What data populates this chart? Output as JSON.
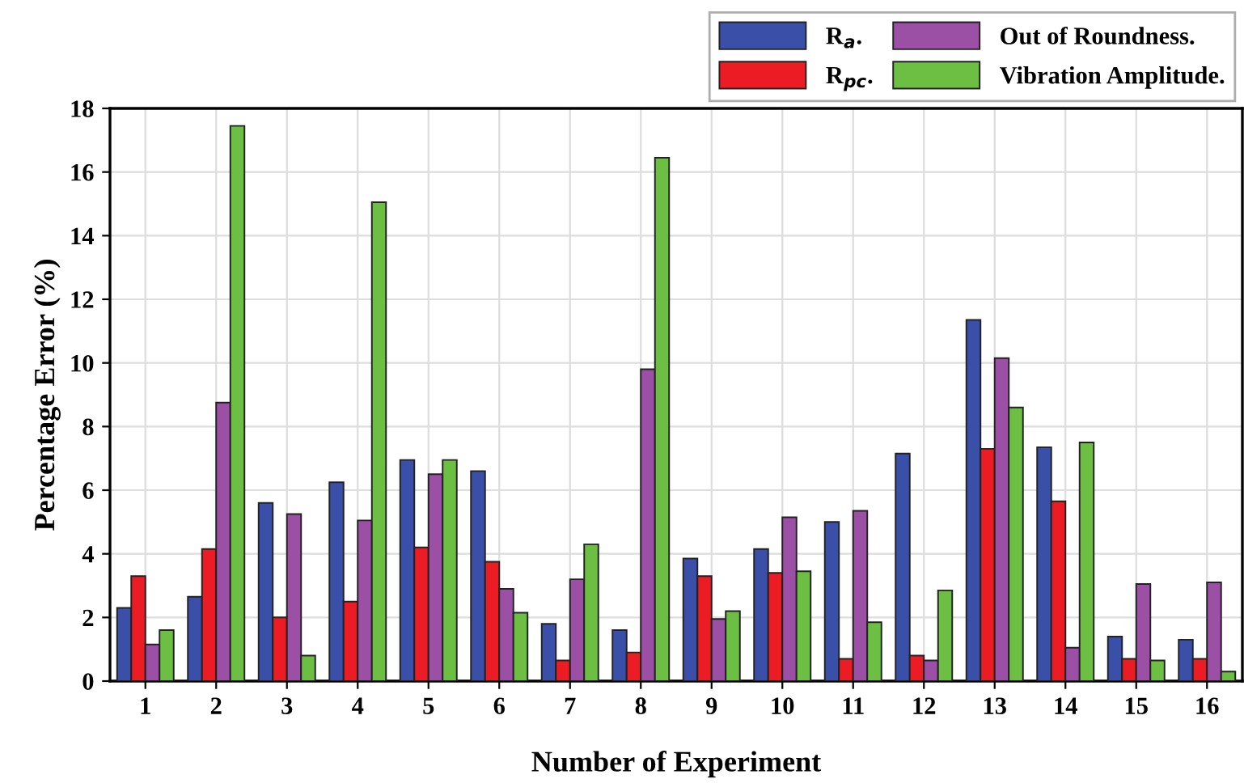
{
  "chart_data": {
    "type": "bar",
    "xlabel": "Number of Experiment",
    "ylabel": "Percentage Error (%)",
    "categories": [
      "1",
      "2",
      "3",
      "4",
      "5",
      "6",
      "7",
      "8",
      "9",
      "10",
      "11",
      "12",
      "13",
      "14",
      "15",
      "16"
    ],
    "series": [
      {
        "name": "R$_{a}$.",
        "color": "#3a4fa8",
        "values": [
          2.3,
          2.65,
          5.6,
          6.25,
          6.95,
          6.6,
          1.8,
          1.6,
          3.85,
          4.15,
          5.0,
          7.15,
          11.35,
          7.35,
          1.4,
          1.3
        ]
      },
      {
        "name": "R$_{pc}$.",
        "color": "#ec1c24",
        "values": [
          3.3,
          4.15,
          2.0,
          2.5,
          4.2,
          3.75,
          0.65,
          0.9,
          3.3,
          3.4,
          0.7,
          0.8,
          7.3,
          5.65,
          0.7,
          0.7
        ]
      },
      {
        "name": "Out of Roundness.",
        "color": "#9b4fa5",
        "values": [
          1.15,
          8.75,
          5.25,
          5.05,
          6.5,
          2.9,
          3.2,
          9.8,
          1.95,
          5.15,
          5.35,
          0.65,
          10.15,
          1.05,
          3.05,
          3.1
        ]
      },
      {
        "name": "Vibration Amplitude.",
        "color": "#6cbf43",
        "values": [
          1.6,
          17.45,
          0.8,
          15.05,
          6.95,
          2.15,
          4.3,
          16.45,
          2.2,
          3.45,
          1.85,
          2.85,
          8.6,
          7.5,
          0.65,
          0.3
        ]
      }
    ],
    "ylim": [
      0,
      18
    ],
    "yticks": [
      0,
      2,
      4,
      6,
      8,
      10,
      12,
      14,
      16,
      18
    ],
    "grid": true,
    "legend": "top right"
  }
}
